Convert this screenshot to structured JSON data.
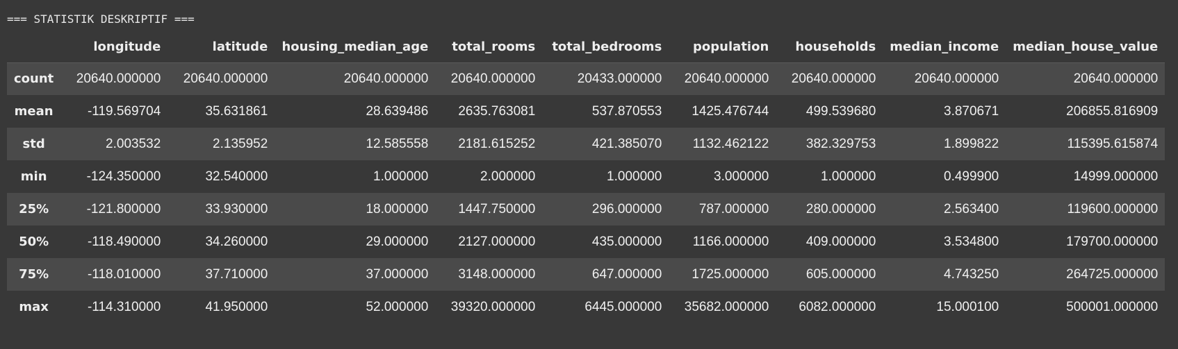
{
  "output": {
    "heading": "=== STATISTIK DESKRIPTIF ==="
  },
  "table": {
    "columns": [
      "longitude",
      "latitude",
      "housing_median_age",
      "total_rooms",
      "total_bedrooms",
      "population",
      "households",
      "median_income",
      "median_house_value"
    ],
    "rows": [
      {
        "label": "count",
        "values": [
          "20640.000000",
          "20640.000000",
          "20640.000000",
          "20640.000000",
          "20433.000000",
          "20640.000000",
          "20640.000000",
          "20640.000000",
          "20640.000000"
        ]
      },
      {
        "label": "mean",
        "values": [
          "-119.569704",
          "35.631861",
          "28.639486",
          "2635.763081",
          "537.870553",
          "1425.476744",
          "499.539680",
          "3.870671",
          "206855.816909"
        ]
      },
      {
        "label": "std",
        "values": [
          "2.003532",
          "2.135952",
          "12.585558",
          "2181.615252",
          "421.385070",
          "1132.462122",
          "382.329753",
          "1.899822",
          "115395.615874"
        ]
      },
      {
        "label": "min",
        "values": [
          "-124.350000",
          "32.540000",
          "1.000000",
          "2.000000",
          "1.000000",
          "3.000000",
          "1.000000",
          "0.499900",
          "14999.000000"
        ]
      },
      {
        "label": "25%",
        "values": [
          "-121.800000",
          "33.930000",
          "18.000000",
          "1447.750000",
          "296.000000",
          "787.000000",
          "280.000000",
          "2.563400",
          "119600.000000"
        ]
      },
      {
        "label": "50%",
        "values": [
          "-118.490000",
          "34.260000",
          "29.000000",
          "2127.000000",
          "435.000000",
          "1166.000000",
          "409.000000",
          "3.534800",
          "179700.000000"
        ]
      },
      {
        "label": "75%",
        "values": [
          "-118.010000",
          "37.710000",
          "37.000000",
          "3148.000000",
          "647.000000",
          "1725.000000",
          "605.000000",
          "4.743250",
          "264725.000000"
        ]
      },
      {
        "label": "max",
        "values": [
          "-114.310000",
          "41.950000",
          "52.000000",
          "39320.000000",
          "6445.000000",
          "35682.000000",
          "6082.000000",
          "15.000100",
          "500001.000000"
        ]
      }
    ]
  }
}
